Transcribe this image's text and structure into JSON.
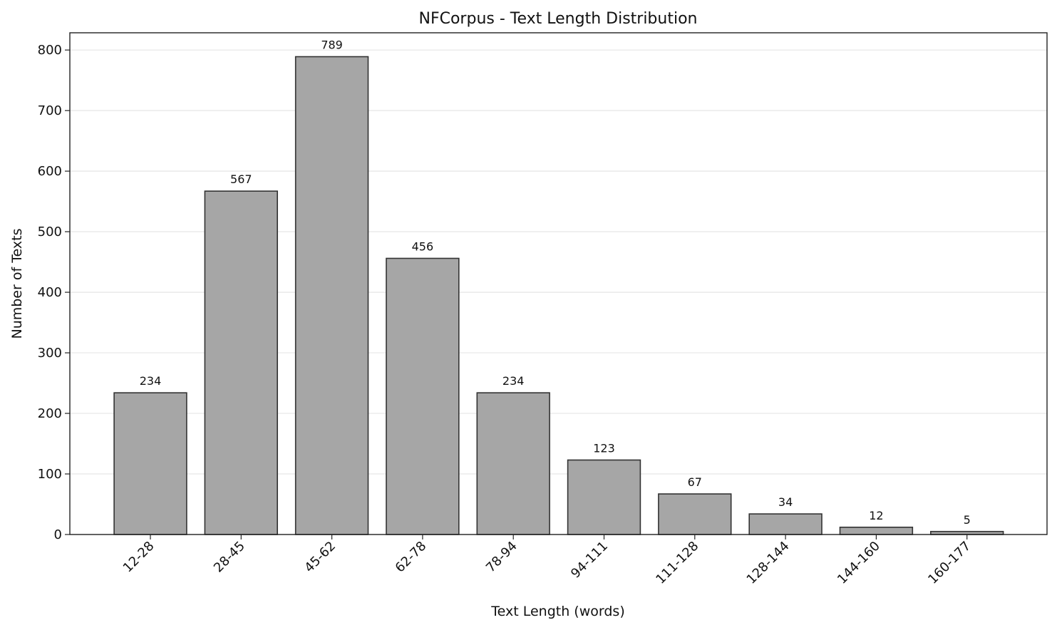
{
  "chart_data": {
    "type": "bar",
    "title": "NFCorpus - Text Length Distribution",
    "xlabel": "Text Length (words)",
    "ylabel": "Number of Texts",
    "categories": [
      "12-28",
      "28-45",
      "45-62",
      "62-78",
      "78-94",
      "94-111",
      "111-128",
      "128-144",
      "144-160",
      "160-177"
    ],
    "values": [
      234,
      567,
      789,
      456,
      234,
      123,
      67,
      34,
      12,
      5
    ],
    "data_labels": [
      "234",
      "567",
      "789",
      "456",
      "234",
      "123",
      "67",
      "34",
      "12",
      "5"
    ],
    "ylim": [
      0,
      828.45
    ],
    "yticks": [
      0,
      100,
      200,
      300,
      400,
      500,
      600,
      700,
      800
    ],
    "ytick_labels": [
      "0",
      "100",
      "200",
      "300",
      "400",
      "500",
      "600",
      "700",
      "800"
    ],
    "grid": "y",
    "bar_color": "#a6a6a6",
    "bar_edge_color": "#333333"
  }
}
